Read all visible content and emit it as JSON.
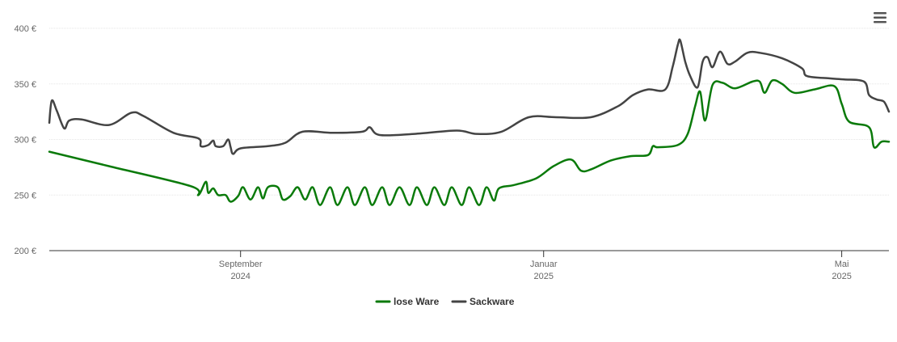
{
  "chart_data": {
    "type": "line",
    "title": "",
    "xlabel": "",
    "ylabel": "",
    "ylim": [
      200,
      400
    ],
    "xlim": [
      "2024-06-16",
      "2025-05-20"
    ],
    "y_ticks": [
      {
        "value": 200,
        "label": "200 €"
      },
      {
        "value": 250,
        "label": "250 €"
      },
      {
        "value": 300,
        "label": "300 €"
      },
      {
        "value": 350,
        "label": "350 €"
      },
      {
        "value": 400,
        "label": "400 €"
      }
    ],
    "x_ticks": [
      {
        "date": "2024-09-01",
        "label": "September",
        "sublabel": "2024"
      },
      {
        "date": "2025-01-01",
        "label": "Januar",
        "sublabel": "2025"
      },
      {
        "date": "2025-05-01",
        "label": "Mai",
        "sublabel": "2025"
      }
    ],
    "grid": true,
    "legend_position": "bottom-center",
    "series": [
      {
        "name": "lose Ware",
        "color": "#0a7a0a",
        "points": [
          [
            "2024-06-16",
            289
          ],
          [
            "2024-07-10",
            276
          ],
          [
            "2024-08-12",
            258
          ],
          [
            "2024-08-15",
            250
          ],
          [
            "2024-08-18",
            262
          ],
          [
            "2024-08-19",
            252
          ],
          [
            "2024-08-21",
            256
          ],
          [
            "2024-08-23",
            250
          ],
          [
            "2024-08-26",
            250
          ],
          [
            "2024-08-28",
            244
          ],
          [
            "2024-08-31",
            249
          ],
          [
            "2024-09-02",
            257
          ],
          [
            "2024-09-05",
            246
          ],
          [
            "2024-09-08",
            257
          ],
          [
            "2024-09-10",
            247
          ],
          [
            "2024-09-12",
            257
          ],
          [
            "2024-09-16",
            257
          ],
          [
            "2024-09-18",
            246
          ],
          [
            "2024-09-21",
            249
          ],
          [
            "2024-09-24",
            257
          ],
          [
            "2024-09-27",
            246
          ],
          [
            "2024-09-30",
            257
          ],
          [
            "2024-10-03",
            241
          ],
          [
            "2024-10-07",
            257
          ],
          [
            "2024-10-10",
            241
          ],
          [
            "2024-10-14",
            257
          ],
          [
            "2024-10-17",
            241
          ],
          [
            "2024-10-21",
            257
          ],
          [
            "2024-10-24",
            241
          ],
          [
            "2024-10-28",
            257
          ],
          [
            "2024-10-31",
            241
          ],
          [
            "2024-11-04",
            257
          ],
          [
            "2024-11-08",
            241
          ],
          [
            "2024-11-11",
            257
          ],
          [
            "2024-11-15",
            241
          ],
          [
            "2024-11-18",
            257
          ],
          [
            "2024-11-22",
            241
          ],
          [
            "2024-11-25",
            257
          ],
          [
            "2024-11-29",
            241
          ],
          [
            "2024-12-02",
            257
          ],
          [
            "2024-12-06",
            241
          ],
          [
            "2024-12-09",
            257
          ],
          [
            "2024-12-12",
            245
          ],
          [
            "2024-12-14",
            256
          ],
          [
            "2024-12-20",
            259
          ],
          [
            "2024-12-29",
            265
          ],
          [
            "2025-01-05",
            276
          ],
          [
            "2025-01-12",
            282
          ],
          [
            "2025-01-16",
            272
          ],
          [
            "2025-01-20",
            273
          ],
          [
            "2025-01-28",
            281
          ],
          [
            "2025-02-05",
            285
          ],
          [
            "2025-02-12",
            286
          ],
          [
            "2025-02-14",
            294
          ],
          [
            "2025-02-16",
            293
          ],
          [
            "2025-02-24",
            295
          ],
          [
            "2025-02-28",
            305
          ],
          [
            "2025-03-03",
            330
          ],
          [
            "2025-03-05",
            343
          ],
          [
            "2025-03-07",
            317
          ],
          [
            "2025-03-10",
            349
          ],
          [
            "2025-03-14",
            351
          ],
          [
            "2025-03-19",
            346
          ],
          [
            "2025-03-26",
            352
          ],
          [
            "2025-03-29",
            352
          ],
          [
            "2025-03-31",
            342
          ],
          [
            "2025-04-03",
            353
          ],
          [
            "2025-04-07",
            350
          ],
          [
            "2025-04-12",
            342
          ],
          [
            "2025-04-20",
            345
          ],
          [
            "2025-04-28",
            348
          ],
          [
            "2025-05-01",
            332
          ],
          [
            "2025-05-04",
            316
          ],
          [
            "2025-05-12",
            311
          ],
          [
            "2025-05-14",
            293
          ],
          [
            "2025-05-17",
            298
          ],
          [
            "2025-05-20",
            298
          ]
        ]
      },
      {
        "name": "Sackware",
        "color": "#444444",
        "points": [
          [
            "2024-06-16",
            315
          ],
          [
            "2024-06-17",
            335
          ],
          [
            "2024-06-19",
            326
          ],
          [
            "2024-06-22",
            310
          ],
          [
            "2024-06-24",
            317
          ],
          [
            "2024-06-29",
            318
          ],
          [
            "2024-07-10",
            313
          ],
          [
            "2024-07-19",
            324
          ],
          [
            "2024-07-24",
            321
          ],
          [
            "2024-08-05",
            306
          ],
          [
            "2024-08-15",
            301
          ],
          [
            "2024-08-16",
            294
          ],
          [
            "2024-08-19",
            295
          ],
          [
            "2024-08-21",
            299
          ],
          [
            "2024-08-22",
            294
          ],
          [
            "2024-08-25",
            294
          ],
          [
            "2024-08-27",
            300
          ],
          [
            "2024-08-28",
            293
          ],
          [
            "2024-08-29",
            287
          ],
          [
            "2024-09-01",
            292
          ],
          [
            "2024-09-12",
            294
          ],
          [
            "2024-09-19",
            297
          ],
          [
            "2024-09-26",
            307
          ],
          [
            "2024-10-08",
            306
          ],
          [
            "2024-10-20",
            307
          ],
          [
            "2024-10-23",
            311
          ],
          [
            "2024-10-27",
            304
          ],
          [
            "2024-11-10",
            305
          ],
          [
            "2024-11-27",
            308
          ],
          [
            "2024-12-05",
            305
          ],
          [
            "2024-12-15",
            307
          ],
          [
            "2024-12-26",
            320
          ],
          [
            "2025-01-06",
            320
          ],
          [
            "2025-01-20",
            320
          ],
          [
            "2025-01-31",
            330
          ],
          [
            "2025-02-06",
            340
          ],
          [
            "2025-02-12",
            345
          ],
          [
            "2025-02-19",
            345
          ],
          [
            "2025-02-22",
            366
          ],
          [
            "2025-02-24",
            385
          ],
          [
            "2025-02-25",
            389
          ],
          [
            "2025-02-27",
            370
          ],
          [
            "2025-03-01",
            357
          ],
          [
            "2025-03-04",
            347
          ],
          [
            "2025-03-06",
            370
          ],
          [
            "2025-03-08",
            374
          ],
          [
            "2025-03-10",
            365
          ],
          [
            "2025-03-13",
            379
          ],
          [
            "2025-03-16",
            368
          ],
          [
            "2025-03-19",
            370
          ],
          [
            "2025-03-24",
            378
          ],
          [
            "2025-03-29",
            378
          ],
          [
            "2025-04-07",
            373
          ],
          [
            "2025-04-15",
            364
          ],
          [
            "2025-04-17",
            357
          ],
          [
            "2025-04-26",
            355
          ],
          [
            "2025-05-02",
            354
          ],
          [
            "2025-05-10",
            352
          ],
          [
            "2025-05-12",
            340
          ],
          [
            "2025-05-15",
            336
          ],
          [
            "2025-05-18",
            334
          ],
          [
            "2025-05-20",
            325
          ]
        ]
      }
    ]
  }
}
